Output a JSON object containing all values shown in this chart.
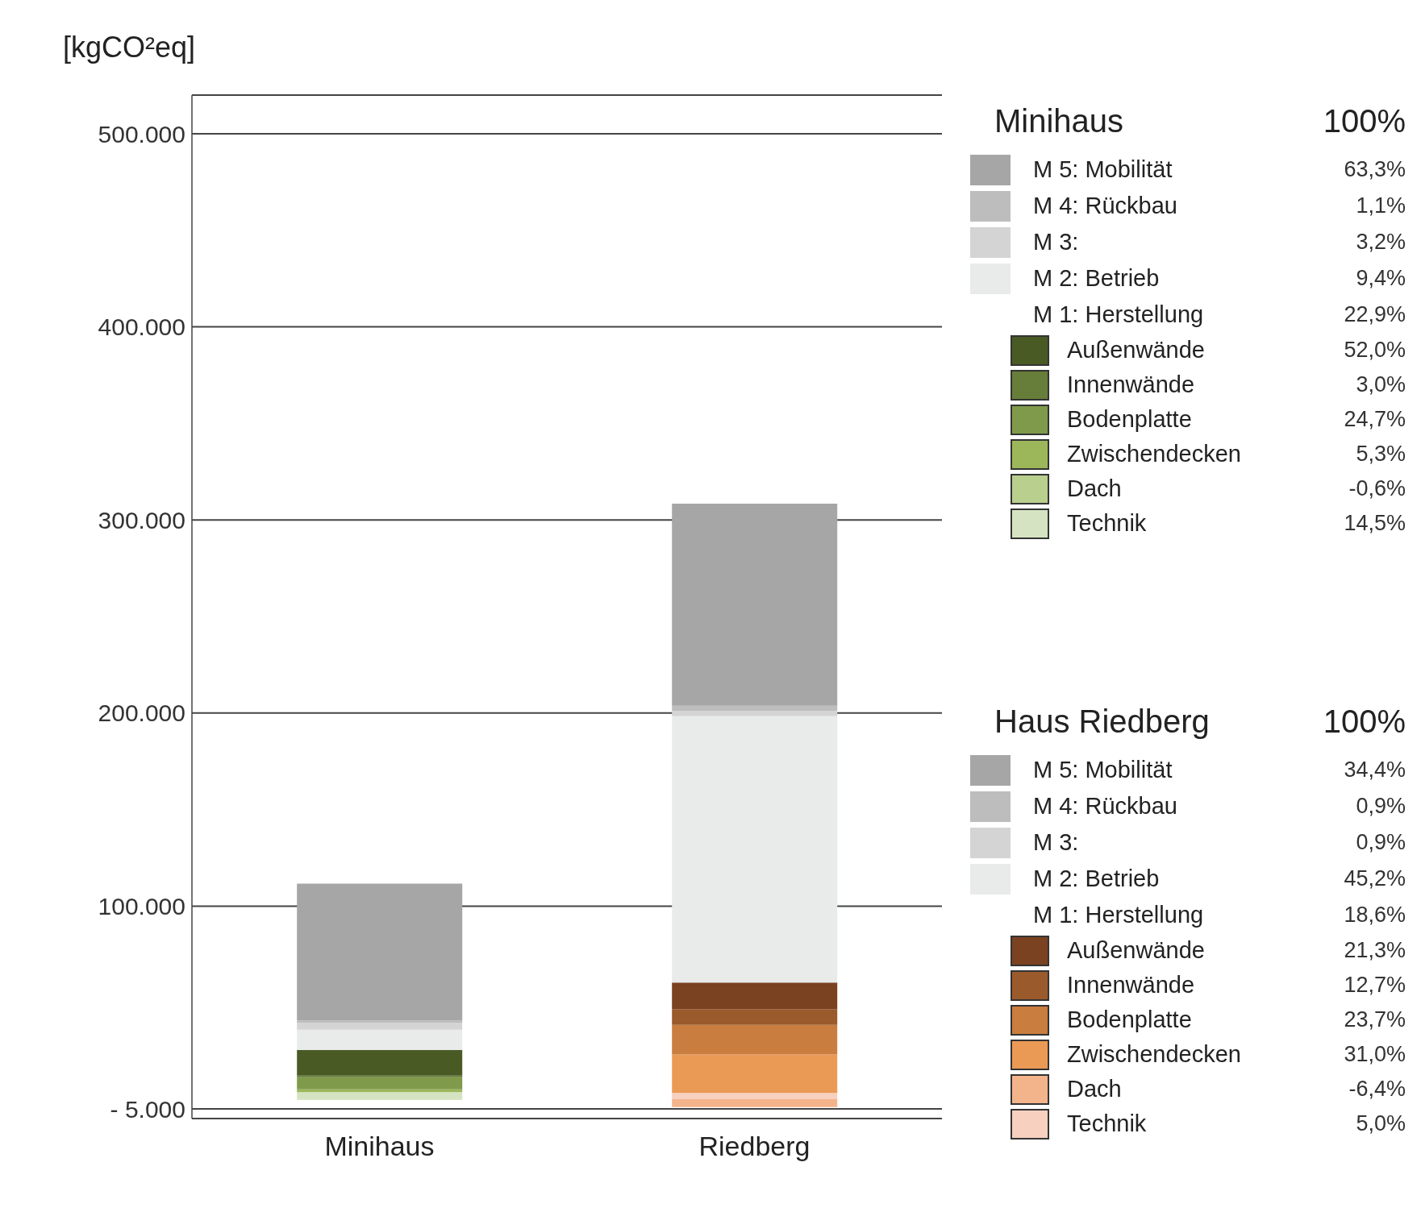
{
  "chart_data": {
    "type": "bar",
    "stacked": true,
    "ylabel": "[kgCO²eq]",
    "categories": [
      "Minihaus",
      "Riedberg"
    ],
    "series": [
      {
        "name": "Technik",
        "colors": [
          "#d5e3c2",
          "#f7d0bf"
        ],
        "values": [
          3700,
          3200
        ]
      },
      {
        "name": "Dach",
        "colors": [
          "#b9cf8e",
          "#f3b48c"
        ],
        "values": [
          -200,
          -4100
        ]
      },
      {
        "name": "Zwischendecken",
        "colors": [
          "#9cb75a",
          "#ea9a55"
        ],
        "values": [
          1400,
          20000
        ]
      },
      {
        "name": "Bodenplatte",
        "colors": [
          "#7f9a4b",
          "#c97d3f"
        ],
        "values": [
          6300,
          15300
        ]
      },
      {
        "name": "Innenwände",
        "colors": [
          "#677d3a",
          "#9a5a2c"
        ],
        "values": [
          800,
          8200
        ]
      },
      {
        "name": "Außenwände",
        "colors": [
          "#4a5a25",
          "#7a4220"
        ],
        "values": [
          13300,
          13700
        ]
      },
      {
        "name": "M 2: Betrieb",
        "color": "#e9eaea",
        "values": [
          10500,
          138000
        ]
      },
      {
        "name": "M 3:",
        "color": "#d4d4d4",
        "values": [
          3600,
          2700
        ]
      },
      {
        "name": "M 4: Rückbau",
        "color": "#bdbdbd",
        "values": [
          1200,
          2700
        ]
      },
      {
        "name": "M 5: Mobilität",
        "color": "#a6a6a6",
        "values": [
          70900,
          104600
        ]
      }
    ],
    "ylim": [
      -10000,
      520000
    ],
    "yticks": [
      {
        "value": -5000,
        "label": "- 5.000"
      },
      {
        "value": 100000,
        "label": "100.000"
      },
      {
        "value": 200000,
        "label": "200.000"
      },
      {
        "value": 300000,
        "label": "300.000"
      },
      {
        "value": 400000,
        "label": "400.000"
      },
      {
        "value": 500000,
        "label": "500.000"
      }
    ],
    "grid": "y",
    "legend": "right",
    "annotations": [
      "Minihaus",
      "100%",
      "63,3%",
      "1,1%",
      "3,2%",
      "9,4%",
      "M 1: Herstellung",
      "22,9%",
      "52,0%",
      "3,0%",
      "24,7%",
      "5,3%",
      "-0,6%",
      "14,5%",
      "Haus Riedberg",
      "100%",
      "34,4%",
      "0,9%",
      "0,9%",
      "45,2%",
      "M 1: Herstellung",
      "18,6%",
      "21,3%",
      "12,7%",
      "23,7%",
      "31,0%",
      "-6,4%",
      "5,0%"
    ]
  }
}
